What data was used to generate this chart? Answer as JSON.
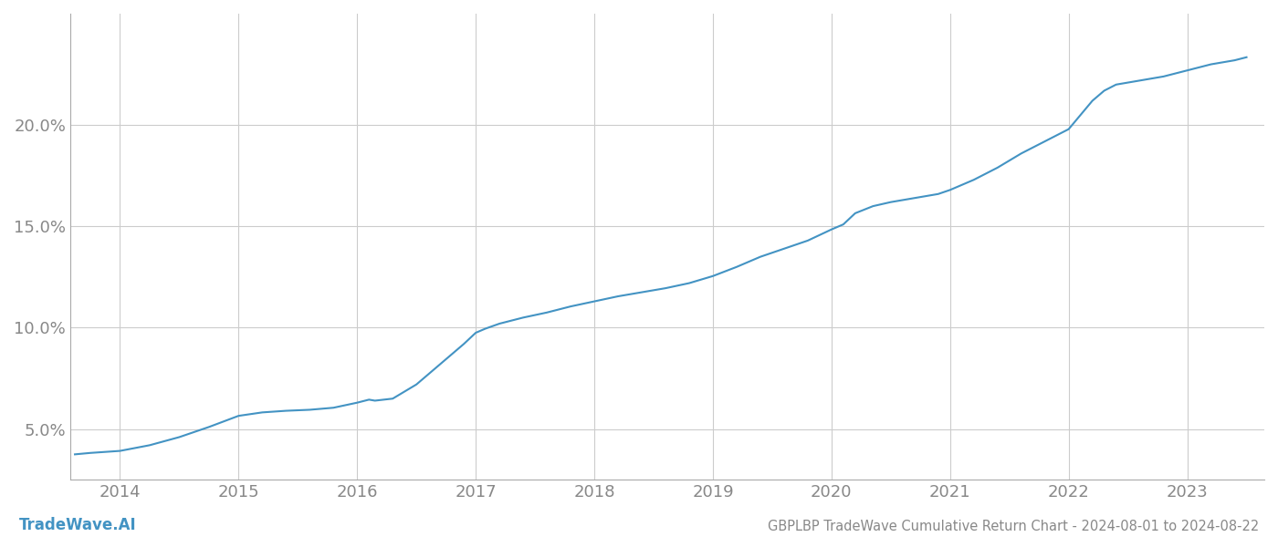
{
  "title": "GBPLBP TradeWave Cumulative Return Chart - 2024-08-01 to 2024-08-22",
  "line_color": "#4393c3",
  "background_color": "#ffffff",
  "grid_color": "#cccccc",
  "text_color": "#888888",
  "watermark": "TradeWave.AI",
  "watermark_color": "#4393c3",
  "ylim_min": 2.5,
  "ylim_max": 25.5,
  "xlim_min": 2013.58,
  "xlim_max": 2023.65,
  "yticks": [
    5.0,
    10.0,
    15.0,
    20.0
  ],
  "xtick_years": [
    2014,
    2015,
    2016,
    2017,
    2018,
    2019,
    2020,
    2021,
    2022,
    2023
  ],
  "title_fontsize": 10.5,
  "tick_fontsize": 13,
  "watermark_fontsize": 12,
  "curve": [
    [
      2013.62,
      3.75
    ],
    [
      2013.75,
      3.82
    ],
    [
      2014.0,
      3.92
    ],
    [
      2014.25,
      4.2
    ],
    [
      2014.5,
      4.6
    ],
    [
      2014.75,
      5.1
    ],
    [
      2015.0,
      5.65
    ],
    [
      2015.2,
      5.82
    ],
    [
      2015.4,
      5.9
    ],
    [
      2015.6,
      5.95
    ],
    [
      2015.8,
      6.05
    ],
    [
      2016.0,
      6.3
    ],
    [
      2016.1,
      6.45
    ],
    [
      2016.15,
      6.4
    ],
    [
      2016.3,
      6.5
    ],
    [
      2016.5,
      7.2
    ],
    [
      2016.7,
      8.2
    ],
    [
      2016.9,
      9.2
    ],
    [
      2017.0,
      9.75
    ],
    [
      2017.08,
      9.95
    ],
    [
      2017.2,
      10.2
    ],
    [
      2017.4,
      10.5
    ],
    [
      2017.6,
      10.75
    ],
    [
      2017.8,
      11.05
    ],
    [
      2018.0,
      11.3
    ],
    [
      2018.2,
      11.55
    ],
    [
      2018.4,
      11.75
    ],
    [
      2018.5,
      11.85
    ],
    [
      2018.6,
      11.95
    ],
    [
      2018.8,
      12.2
    ],
    [
      2019.0,
      12.55
    ],
    [
      2019.2,
      13.0
    ],
    [
      2019.4,
      13.5
    ],
    [
      2019.6,
      13.9
    ],
    [
      2019.8,
      14.3
    ],
    [
      2020.0,
      14.85
    ],
    [
      2020.1,
      15.1
    ],
    [
      2020.2,
      15.65
    ],
    [
      2020.35,
      16.0
    ],
    [
      2020.5,
      16.2
    ],
    [
      2020.7,
      16.4
    ],
    [
      2020.9,
      16.6
    ],
    [
      2021.0,
      16.8
    ],
    [
      2021.2,
      17.3
    ],
    [
      2021.4,
      17.9
    ],
    [
      2021.6,
      18.6
    ],
    [
      2021.8,
      19.2
    ],
    [
      2021.9,
      19.5
    ],
    [
      2022.0,
      19.8
    ],
    [
      2022.1,
      20.5
    ],
    [
      2022.2,
      21.2
    ],
    [
      2022.3,
      21.7
    ],
    [
      2022.4,
      22.0
    ],
    [
      2022.5,
      22.1
    ],
    [
      2022.6,
      22.2
    ],
    [
      2022.7,
      22.3
    ],
    [
      2022.8,
      22.4
    ],
    [
      2022.9,
      22.55
    ],
    [
      2023.0,
      22.7
    ],
    [
      2023.1,
      22.85
    ],
    [
      2023.2,
      23.0
    ],
    [
      2023.3,
      23.1
    ],
    [
      2023.4,
      23.2
    ],
    [
      2023.5,
      23.35
    ]
  ]
}
